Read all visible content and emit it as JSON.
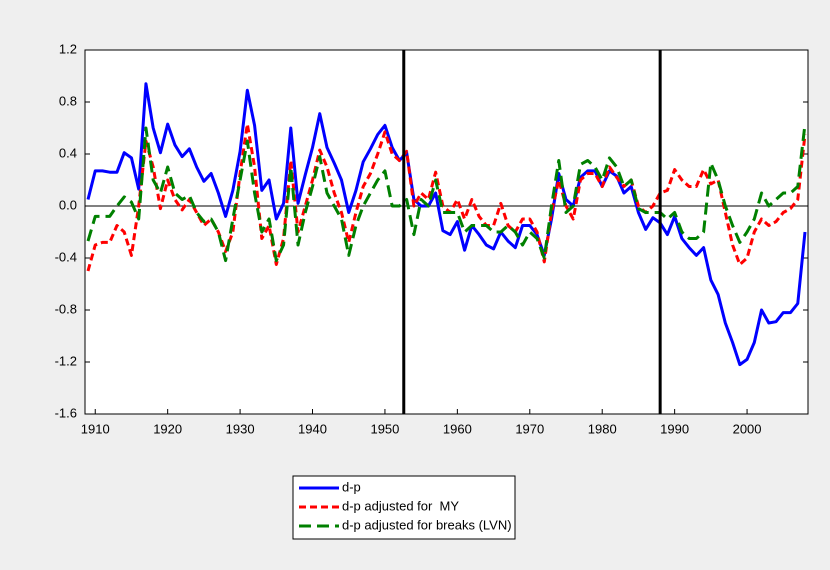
{
  "chart_data": {
    "type": "line",
    "x": [
      1909,
      1910,
      1911,
      1912,
      1913,
      1914,
      1915,
      1916,
      1917,
      1918,
      1919,
      1920,
      1921,
      1922,
      1923,
      1924,
      1925,
      1926,
      1927,
      1928,
      1929,
      1930,
      1931,
      1932,
      1933,
      1934,
      1935,
      1936,
      1937,
      1938,
      1939,
      1940,
      1941,
      1942,
      1943,
      1944,
      1945,
      1946,
      1947,
      1948,
      1949,
      1950,
      1951,
      1952,
      1953,
      1954,
      1955,
      1956,
      1957,
      1958,
      1959,
      1960,
      1961,
      1962,
      1963,
      1964,
      1965,
      1966,
      1967,
      1968,
      1969,
      1970,
      1971,
      1972,
      1973,
      1974,
      1975,
      1976,
      1977,
      1978,
      1979,
      1980,
      1981,
      1982,
      1983,
      1984,
      1985,
      1986,
      1987,
      1988,
      1989,
      1990,
      1991,
      1992,
      1993,
      1994,
      1995,
      1996,
      1997,
      1998,
      1999,
      2000,
      2001,
      2002,
      2003,
      2004,
      2005,
      2006,
      2007,
      2008
    ],
    "series": [
      {
        "name": "d-p",
        "color": "#0000ff",
        "dash": "solid",
        "values": [
          0.05,
          0.27,
          0.27,
          0.26,
          0.26,
          0.41,
          0.37,
          0.13,
          0.94,
          0.6,
          0.41,
          0.63,
          0.47,
          0.38,
          0.44,
          0.3,
          0.19,
          0.25,
          0.1,
          -0.08,
          0.12,
          0.42,
          0.89,
          0.62,
          0.12,
          0.2,
          -0.1,
          0.02,
          0.6,
          0.02,
          0.24,
          0.45,
          0.71,
          0.45,
          0.33,
          0.2,
          -0.05,
          0.12,
          0.34,
          0.44,
          0.55,
          0.62,
          0.45,
          0.35,
          0.41,
          0.05,
          0.0,
          0.0,
          0.1,
          -0.19,
          -0.22,
          -0.12,
          -0.34,
          -0.15,
          -0.22,
          -0.3,
          -0.33,
          -0.2,
          -0.27,
          -0.32,
          -0.15,
          -0.15,
          -0.22,
          -0.38,
          -0.1,
          0.25,
          0.05,
          0.0,
          0.22,
          0.27,
          0.27,
          0.15,
          0.27,
          0.23,
          0.1,
          0.15,
          -0.05,
          -0.18,
          -0.09,
          -0.13,
          -0.22,
          -0.08,
          -0.25,
          -0.32,
          -0.38,
          -0.32,
          -0.57,
          -0.68,
          -0.9,
          -1.05,
          -1.22,
          -1.18,
          -1.05,
          -0.8,
          -0.9,
          -0.89,
          -0.82,
          -0.82,
          -0.75,
          -0.2
        ]
      },
      {
        "name": "d-p adjusted for  MY",
        "color": "#ff0000",
        "dash": "short",
        "values": [
          -0.5,
          -0.3,
          -0.28,
          -0.28,
          -0.15,
          -0.2,
          -0.38,
          0.0,
          0.5,
          0.3,
          -0.02,
          0.2,
          0.05,
          -0.03,
          0.05,
          -0.05,
          -0.15,
          -0.1,
          -0.2,
          -0.35,
          -0.2,
          0.25,
          0.63,
          0.3,
          -0.25,
          -0.15,
          -0.45,
          -0.25,
          0.35,
          -0.2,
          0.0,
          0.2,
          0.43,
          0.3,
          0.1,
          -0.05,
          -0.28,
          -0.05,
          0.15,
          0.25,
          0.4,
          0.57,
          0.4,
          0.35,
          0.42,
          0.0,
          0.1,
          0.05,
          0.26,
          0.0,
          -0.05,
          0.05,
          -0.1,
          0.05,
          -0.08,
          -0.15,
          -0.15,
          0.02,
          -0.15,
          -0.2,
          -0.1,
          -0.1,
          -0.2,
          -0.43,
          -0.05,
          0.2,
          0.0,
          -0.1,
          0.2,
          0.25,
          0.25,
          0.15,
          0.3,
          0.22,
          0.15,
          0.2,
          0.0,
          -0.05,
          0.0,
          0.1,
          0.12,
          0.28,
          0.2,
          0.15,
          0.15,
          0.28,
          0.17,
          0.2,
          -0.05,
          -0.3,
          -0.45,
          -0.4,
          -0.2,
          -0.1,
          -0.15,
          -0.12,
          -0.05,
          -0.02,
          0.05,
          0.55
        ]
      },
      {
        "name": "d-p adjusted for breaks (LVN)",
        "color": "#008000",
        "dash": "long",
        "values": [
          -0.27,
          -0.08,
          -0.08,
          -0.08,
          0.0,
          0.07,
          0.03,
          -0.1,
          0.6,
          0.2,
          0.1,
          0.3,
          0.1,
          0.05,
          0.08,
          -0.05,
          -0.12,
          -0.1,
          -0.2,
          -0.42,
          -0.1,
          0.2,
          0.5,
          0.1,
          -0.2,
          -0.1,
          -0.42,
          -0.3,
          0.3,
          -0.3,
          -0.05,
          0.15,
          0.38,
          0.1,
          0.0,
          -0.1,
          -0.38,
          -0.15,
          0.0,
          0.1,
          0.2,
          0.27,
          0.0,
          0.0,
          0.05,
          -0.22,
          0.05,
          0.0,
          0.2,
          -0.05,
          -0.05,
          -0.05,
          -0.2,
          -0.15,
          -0.15,
          -0.15,
          -0.2,
          -0.2,
          -0.15,
          -0.2,
          -0.3,
          -0.2,
          -0.25,
          -0.4,
          0.0,
          0.35,
          -0.05,
          0.0,
          0.32,
          0.35,
          0.3,
          0.2,
          0.37,
          0.3,
          0.15,
          0.2,
          -0.02,
          -0.05,
          -0.05,
          -0.05,
          -0.1,
          -0.05,
          -0.2,
          -0.25,
          -0.25,
          -0.2,
          0.33,
          0.2,
          0.0,
          -0.15,
          -0.28,
          -0.2,
          -0.1,
          0.1,
          0.0,
          0.05,
          0.1,
          0.1,
          0.15,
          0.63
        ]
      }
    ],
    "xlim": [
      1909,
      2008
    ],
    "xticks": [
      1910,
      1920,
      1930,
      1940,
      1950,
      1960,
      1970,
      1980,
      1990,
      2000
    ],
    "ylim": [
      -1.6,
      1.2
    ],
    "yticks": [
      {
        "value": -1.6,
        "label": "-1.6"
      },
      {
        "value": -1.2,
        "label": "-1.2"
      },
      {
        "value": -0.8,
        "label": "-0.8"
      },
      {
        "value": -0.4,
        "label": "-0.4"
      },
      {
        "value": 0,
        "label": "0.0"
      },
      {
        "value": 0.4,
        "label": "0.4"
      },
      {
        "value": 0.8,
        "label": "0.8"
      },
      {
        "value": 1.2,
        "label": "1.2"
      }
    ],
    "vertical_lines": [
      1952.6,
      1988
    ],
    "zero_line": true,
    "legend": "bottom"
  }
}
